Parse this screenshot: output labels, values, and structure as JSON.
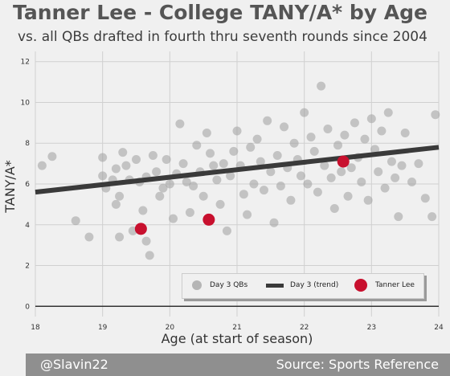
{
  "header": {
    "title": "Tanner Lee - College TANY/A* by Age",
    "subtitle": "vs. all QBs drafted in fourth thru seventh rounds since 2004"
  },
  "footer": {
    "left": "@Slavin22",
    "right": "Source: Sports Reference"
  },
  "legend": {
    "day3": "Day 3 QBs",
    "trend": "Day 3 (trend)",
    "tanner": "Tanner Lee"
  },
  "colors": {
    "background": "#f0f0f0",
    "grid": "#d0d0d0",
    "day3_points": "#9e9e9e",
    "trend": "#3a3a3a",
    "tanner": "#c8102e"
  },
  "chart_data": {
    "type": "scatter",
    "title": "Tanner Lee - College TANY/A* by Age",
    "subtitle": "vs. all QBs drafted in fourth thru seventh rounds since 2004",
    "xlabel": "Age (at start of season)",
    "ylabel": "TANY/A*",
    "xlim": [
      18,
      24
    ],
    "ylim": [
      -0.5,
      12.5
    ],
    "xticks": [
      18,
      19,
      20,
      21,
      22,
      23,
      24
    ],
    "yticks": [
      0,
      2,
      4,
      6,
      8,
      10,
      12
    ],
    "grid": true,
    "legend_position": "lower right",
    "series": [
      {
        "name": "Day 3 QBs",
        "kind": "scatter",
        "points": [
          [
            18.1,
            6.9
          ],
          [
            18.25,
            7.35
          ],
          [
            18.6,
            4.2
          ],
          [
            18.8,
            3.4
          ],
          [
            19.0,
            7.3
          ],
          [
            19.0,
            6.4
          ],
          [
            19.05,
            5.8
          ],
          [
            19.15,
            6.2
          ],
          [
            19.2,
            6.75
          ],
          [
            19.2,
            5.0
          ],
          [
            19.25,
            5.4
          ],
          [
            19.25,
            3.4
          ],
          [
            19.3,
            7.55
          ],
          [
            19.35,
            6.9
          ],
          [
            19.4,
            6.2
          ],
          [
            19.45,
            3.7
          ],
          [
            19.5,
            7.2
          ],
          [
            19.55,
            6.1
          ],
          [
            19.6,
            4.7
          ],
          [
            19.65,
            6.35
          ],
          [
            19.65,
            3.2
          ],
          [
            19.7,
            2.5
          ],
          [
            19.75,
            7.4
          ],
          [
            19.8,
            6.6
          ],
          [
            19.85,
            5.4
          ],
          [
            19.9,
            5.8
          ],
          [
            19.95,
            7.2
          ],
          [
            20.0,
            6.0
          ],
          [
            20.05,
            4.3
          ],
          [
            20.1,
            6.5
          ],
          [
            20.15,
            8.95
          ],
          [
            20.2,
            7.0
          ],
          [
            20.25,
            6.1
          ],
          [
            20.3,
            4.6
          ],
          [
            20.35,
            5.9
          ],
          [
            20.4,
            7.9
          ],
          [
            20.45,
            6.6
          ],
          [
            20.5,
            5.4
          ],
          [
            20.55,
            8.5
          ],
          [
            20.6,
            7.5
          ],
          [
            20.65,
            6.9
          ],
          [
            20.7,
            6.2
          ],
          [
            20.75,
            5.0
          ],
          [
            20.8,
            7.0
          ],
          [
            20.85,
            3.7
          ],
          [
            20.9,
            6.4
          ],
          [
            20.95,
            7.6
          ],
          [
            21.0,
            8.6
          ],
          [
            21.05,
            6.9
          ],
          [
            21.1,
            5.5
          ],
          [
            21.15,
            4.5
          ],
          [
            21.2,
            7.8
          ],
          [
            21.25,
            6.0
          ],
          [
            21.3,
            8.2
          ],
          [
            21.35,
            7.1
          ],
          [
            21.4,
            5.7
          ],
          [
            21.45,
            9.1
          ],
          [
            21.5,
            6.6
          ],
          [
            21.55,
            4.1
          ],
          [
            21.6,
            7.4
          ],
          [
            21.65,
            5.9
          ],
          [
            21.7,
            8.8
          ],
          [
            21.75,
            6.8
          ],
          [
            21.8,
            5.2
          ],
          [
            21.85,
            8.0
          ],
          [
            21.9,
            7.2
          ],
          [
            21.95,
            6.4
          ],
          [
            22.0,
            9.5
          ],
          [
            22.05,
            6.0
          ],
          [
            22.1,
            8.3
          ],
          [
            22.15,
            7.6
          ],
          [
            22.2,
            5.6
          ],
          [
            22.25,
            10.8
          ],
          [
            22.3,
            6.9
          ],
          [
            22.35,
            8.7
          ],
          [
            22.4,
            6.3
          ],
          [
            22.45,
            4.8
          ],
          [
            22.5,
            7.9
          ],
          [
            22.55,
            6.6
          ],
          [
            22.6,
            8.4
          ],
          [
            22.65,
            5.4
          ],
          [
            22.7,
            6.8
          ],
          [
            22.75,
            9.0
          ],
          [
            22.8,
            7.3
          ],
          [
            22.85,
            6.1
          ],
          [
            22.9,
            8.2
          ],
          [
            22.95,
            5.2
          ],
          [
            23.0,
            9.2
          ],
          [
            23.05,
            7.7
          ],
          [
            23.1,
            6.6
          ],
          [
            23.15,
            8.6
          ],
          [
            23.2,
            5.8
          ],
          [
            23.25,
            9.5
          ],
          [
            23.3,
            7.1
          ],
          [
            23.35,
            6.3
          ],
          [
            23.4,
            4.4
          ],
          [
            23.45,
            6.9
          ],
          [
            23.5,
            8.5
          ],
          [
            23.6,
            6.1
          ],
          [
            23.7,
            7.0
          ],
          [
            23.8,
            5.3
          ],
          [
            23.95,
            9.4
          ],
          [
            23.9,
            4.4
          ]
        ]
      },
      {
        "name": "Day 3 (trend)",
        "kind": "line",
        "x": [
          18.0,
          24.0
        ],
        "y": [
          5.6,
          7.8
        ]
      },
      {
        "name": "Tanner Lee",
        "kind": "scatter",
        "points": [
          [
            19.57,
            3.8
          ],
          [
            20.58,
            4.25
          ],
          [
            22.58,
            7.1
          ]
        ]
      }
    ]
  }
}
